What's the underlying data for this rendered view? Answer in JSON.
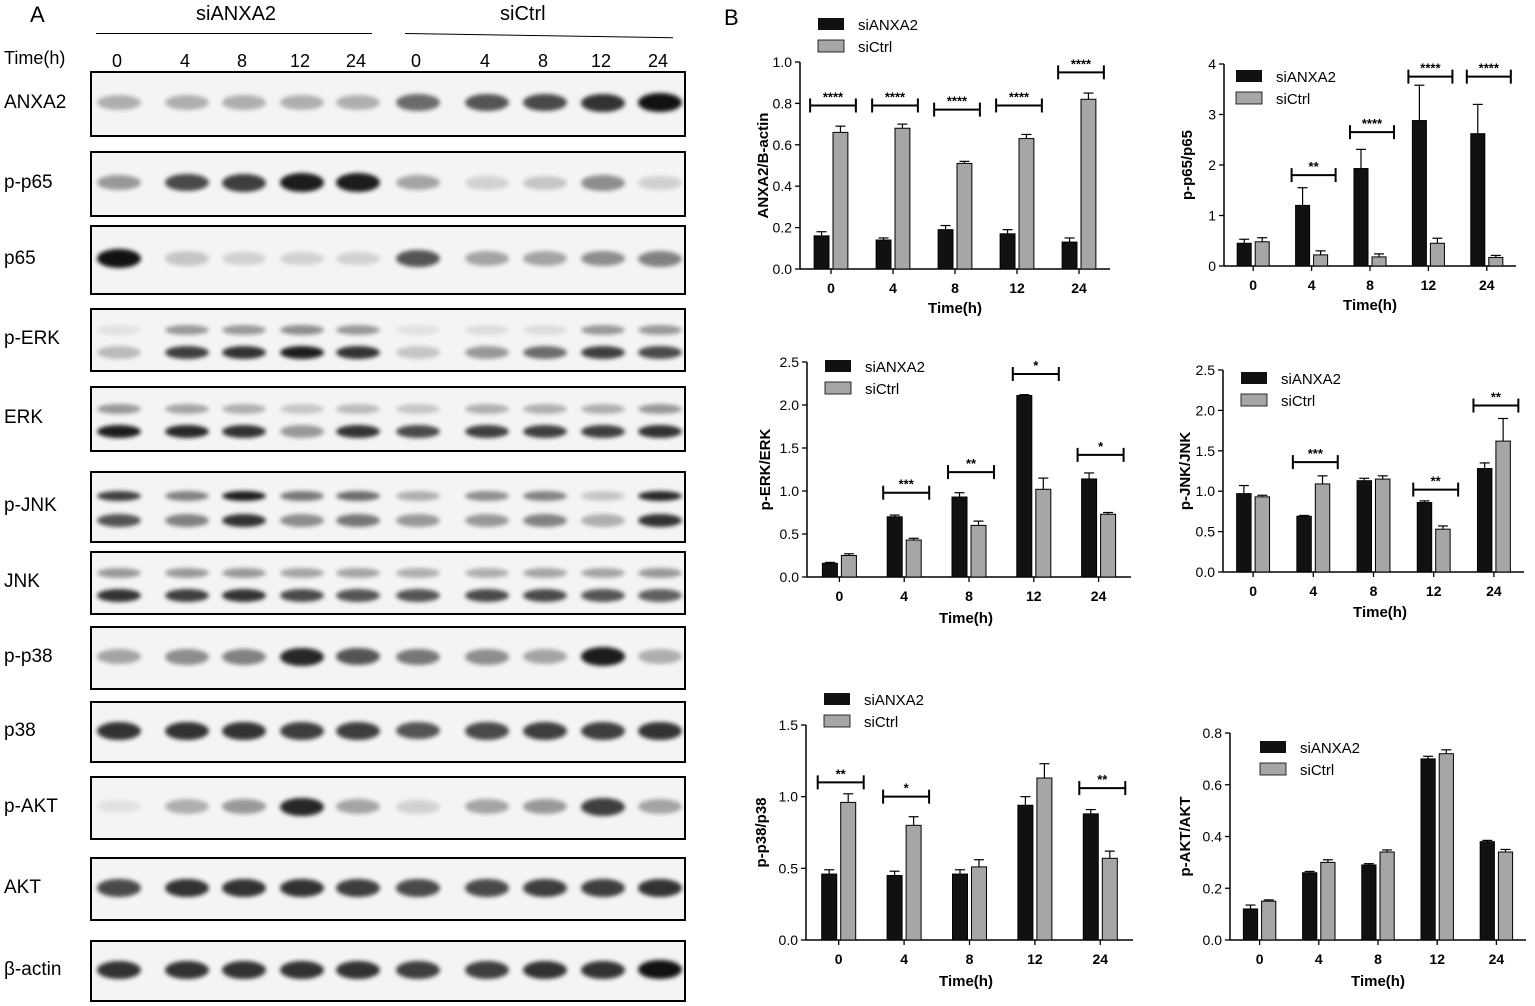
{
  "panel_a": {
    "letter": "A",
    "time_label": "Time(h)",
    "group_left": "siANXA2",
    "group_right": "siCtrl",
    "times": [
      "0",
      "4",
      "8",
      "12",
      "24",
      "0",
      "4",
      "8",
      "12",
      "24"
    ],
    "rows": [
      {
        "label": "ANXA2",
        "double": false,
        "top": [
          0.3,
          0.3,
          0.3,
          0.3,
          0.3,
          0.6,
          0.7,
          0.75,
          0.85,
          1.0
        ]
      },
      {
        "label": "p-p65",
        "double": false,
        "top": [
          0.4,
          0.75,
          0.8,
          0.95,
          0.95,
          0.35,
          0.15,
          0.2,
          0.45,
          0.15
        ]
      },
      {
        "label": "p65",
        "double": false,
        "top": [
          1.0,
          0.2,
          0.15,
          0.15,
          0.15,
          0.7,
          0.35,
          0.35,
          0.45,
          0.5
        ]
      },
      {
        "label": "p-ERK",
        "double": true,
        "top": [
          0.05,
          0.4,
          0.4,
          0.45,
          0.4,
          0.05,
          0.1,
          0.1,
          0.4,
          0.4
        ],
        "bottom": [
          0.25,
          0.8,
          0.85,
          0.95,
          0.85,
          0.2,
          0.4,
          0.6,
          0.8,
          0.75
        ]
      },
      {
        "label": "ERK",
        "double": true,
        "top": [
          0.4,
          0.35,
          0.3,
          0.2,
          0.25,
          0.2,
          0.3,
          0.3,
          0.3,
          0.4
        ],
        "bottom": [
          0.95,
          0.9,
          0.85,
          0.4,
          0.85,
          0.75,
          0.8,
          0.8,
          0.8,
          0.85
        ]
      },
      {
        "label": "p-JNK",
        "double": true,
        "top": [
          0.8,
          0.5,
          0.95,
          0.55,
          0.6,
          0.3,
          0.45,
          0.5,
          0.2,
          0.9
        ],
        "bottom": [
          0.7,
          0.5,
          0.85,
          0.45,
          0.55,
          0.4,
          0.4,
          0.5,
          0.3,
          0.85
        ]
      },
      {
        "label": "JNK",
        "double": true,
        "top": [
          0.4,
          0.4,
          0.4,
          0.35,
          0.35,
          0.3,
          0.3,
          0.35,
          0.35,
          0.4
        ],
        "bottom": [
          0.85,
          0.8,
          0.85,
          0.75,
          0.7,
          0.7,
          0.75,
          0.75,
          0.7,
          0.65
        ]
      },
      {
        "label": "p-p38",
        "double": false,
        "top": [
          0.35,
          0.45,
          0.5,
          0.9,
          0.7,
          0.55,
          0.45,
          0.35,
          0.95,
          0.3
        ]
      },
      {
        "label": "p38",
        "double": false,
        "top": [
          0.85,
          0.85,
          0.85,
          0.8,
          0.8,
          0.7,
          0.75,
          0.8,
          0.8,
          0.85
        ]
      },
      {
        "label": "p-AKT",
        "double": false,
        "top": [
          0.05,
          0.3,
          0.4,
          0.9,
          0.35,
          0.15,
          0.35,
          0.4,
          0.8,
          0.35
        ]
      },
      {
        "label": "AKT",
        "double": false,
        "top": [
          0.75,
          0.85,
          0.85,
          0.85,
          0.8,
          0.75,
          0.75,
          0.8,
          0.8,
          0.85
        ]
      },
      {
        "label": "β-actin",
        "double": false,
        "top": [
          0.85,
          0.85,
          0.85,
          0.85,
          0.85,
          0.8,
          0.8,
          0.85,
          0.85,
          1.0
        ]
      }
    ]
  },
  "panel_b": {
    "letter": "B"
  },
  "legend": {
    "series1": "siANXA2",
    "series2": "siCtrl"
  },
  "colors": {
    "series1": "#111111",
    "series2": "#a6a6a6"
  },
  "chart_data": [
    {
      "type": "bar",
      "categories": [
        "0",
        "4",
        "8",
        "12",
        "24"
      ],
      "xlabel": "Time(h)",
      "ylabel": "ANXA2/B-actin",
      "ylim": [
        0,
        1.0
      ],
      "ticks": [
        "0.0",
        "0.2",
        "0.4",
        "0.6",
        "0.8",
        "1.0"
      ],
      "series": [
        {
          "name": "siANXA2",
          "values": [
            0.16,
            0.14,
            0.19,
            0.17,
            0.13
          ],
          "errors": [
            0.02,
            0.01,
            0.02,
            0.02,
            0.02
          ]
        },
        {
          "name": "siCtrl",
          "values": [
            0.66,
            0.68,
            0.51,
            0.63,
            0.82
          ],
          "errors": [
            0.03,
            0.02,
            0.01,
            0.02,
            0.03
          ]
        }
      ],
      "sig": [
        "****",
        "****",
        "****",
        "****",
        "****"
      ],
      "sig_y": [
        0.79,
        0.79,
        0.77,
        0.79,
        0.95
      ],
      "legend": "top-left"
    },
    {
      "type": "bar",
      "categories": [
        "0",
        "4",
        "8",
        "12",
        "24"
      ],
      "xlabel": "Time(h)",
      "ylabel": "p-p65/p65",
      "ylim": [
        0,
        4
      ],
      "ticks": [
        "0",
        "1",
        "2",
        "3",
        "4"
      ],
      "series": [
        {
          "name": "siANXA2",
          "values": [
            0.45,
            1.2,
            1.93,
            2.88,
            2.62
          ],
          "errors": [
            0.08,
            0.35,
            0.38,
            0.7,
            0.58
          ]
        },
        {
          "name": "siCtrl",
          "values": [
            0.48,
            0.22,
            0.18,
            0.45,
            0.17
          ],
          "errors": [
            0.08,
            0.08,
            0.06,
            0.1,
            0.04
          ]
        }
      ],
      "sig": [
        "",
        "**",
        "****",
        "****",
        "****"
      ],
      "sig_y": [
        0,
        1.8,
        2.65,
        3.75,
        3.75
      ],
      "legend": "top-right"
    },
    {
      "type": "bar",
      "categories": [
        "0",
        "4",
        "8",
        "12",
        "24"
      ],
      "xlabel": "Time(h)",
      "ylabel": "p-ERK/ERK",
      "ylim": [
        0,
        2.5
      ],
      "ticks": [
        "0.0",
        "0.5",
        "1.0",
        "1.5",
        "2.0",
        "2.5"
      ],
      "series": [
        {
          "name": "siANXA2",
          "values": [
            0.16,
            0.7,
            0.93,
            2.11,
            1.14
          ],
          "errors": [
            0.01,
            0.02,
            0.05,
            0.01,
            0.07
          ]
        },
        {
          "name": "siCtrl",
          "values": [
            0.25,
            0.43,
            0.6,
            1.02,
            0.73
          ],
          "errors": [
            0.02,
            0.02,
            0.05,
            0.13,
            0.02
          ]
        }
      ],
      "sig": [
        "",
        "***",
        "**",
        "*",
        "*"
      ],
      "sig_y": [
        0,
        0.98,
        1.22,
        2.36,
        1.42
      ],
      "legend": "top-left"
    },
    {
      "type": "bar",
      "categories": [
        "0",
        "4",
        "8",
        "12",
        "24"
      ],
      "xlabel": "Time(h)",
      "ylabel": "p-JNK/JNK",
      "ylim": [
        0,
        2.5
      ],
      "ticks": [
        "0.0",
        "0.5",
        "1.0",
        "1.5",
        "2.0",
        "2.5"
      ],
      "series": [
        {
          "name": "siANXA2",
          "values": [
            0.97,
            0.69,
            1.13,
            0.86,
            1.28
          ],
          "errors": [
            0.1,
            0.01,
            0.03,
            0.02,
            0.07
          ]
        },
        {
          "name": "siCtrl",
          "values": [
            0.93,
            1.09,
            1.15,
            0.53,
            1.62
          ],
          "errors": [
            0.02,
            0.1,
            0.04,
            0.04,
            0.28
          ]
        }
      ],
      "sig": [
        "",
        "***",
        "",
        "**",
        "**"
      ],
      "sig_y": [
        0,
        1.36,
        0,
        1.02,
        2.06
      ],
      "legend": "top-left"
    },
    {
      "type": "bar",
      "categories": [
        "0",
        "4",
        "8",
        "12",
        "24"
      ],
      "xlabel": "Time(h)",
      "ylabel": "p-p38/p38",
      "ylim": [
        0,
        1.5
      ],
      "ticks": [
        "0.0",
        "0.5",
        "1.0",
        "1.5"
      ],
      "series": [
        {
          "name": "siANXA2",
          "values": [
            0.46,
            0.45,
            0.46,
            0.94,
            0.88
          ],
          "errors": [
            0.03,
            0.03,
            0.03,
            0.06,
            0.03
          ]
        },
        {
          "name": "siCtrl",
          "values": [
            0.96,
            0.8,
            0.51,
            1.13,
            0.57
          ],
          "errors": [
            0.06,
            0.06,
            0.05,
            0.1,
            0.05
          ]
        }
      ],
      "sig": [
        "**",
        "*",
        "",
        "",
        "**"
      ],
      "sig_y": [
        1.1,
        1.0,
        0,
        0,
        1.06
      ],
      "legend": "top-left"
    },
    {
      "type": "bar",
      "categories": [
        "0",
        "4",
        "8",
        "12",
        "24"
      ],
      "xlabel": "Time(h)",
      "ylabel": "p-AKT/AKT",
      "ylim": [
        0,
        0.8
      ],
      "ticks": [
        "0.0",
        "0.2",
        "0.4",
        "0.6",
        "0.8"
      ],
      "series": [
        {
          "name": "siANXA2",
          "values": [
            0.12,
            0.26,
            0.29,
            0.7,
            0.38
          ],
          "errors": [
            0.015,
            0.005,
            0.005,
            0.01,
            0.005
          ]
        },
        {
          "name": "siCtrl",
          "values": [
            0.15,
            0.3,
            0.34,
            0.72,
            0.34
          ],
          "errors": [
            0.005,
            0.01,
            0.008,
            0.015,
            0.01
          ]
        }
      ],
      "sig": [
        "",
        "",
        "",
        "",
        ""
      ],
      "sig_y": [
        0,
        0,
        0,
        0,
        0
      ],
      "legend": "top-left"
    }
  ]
}
